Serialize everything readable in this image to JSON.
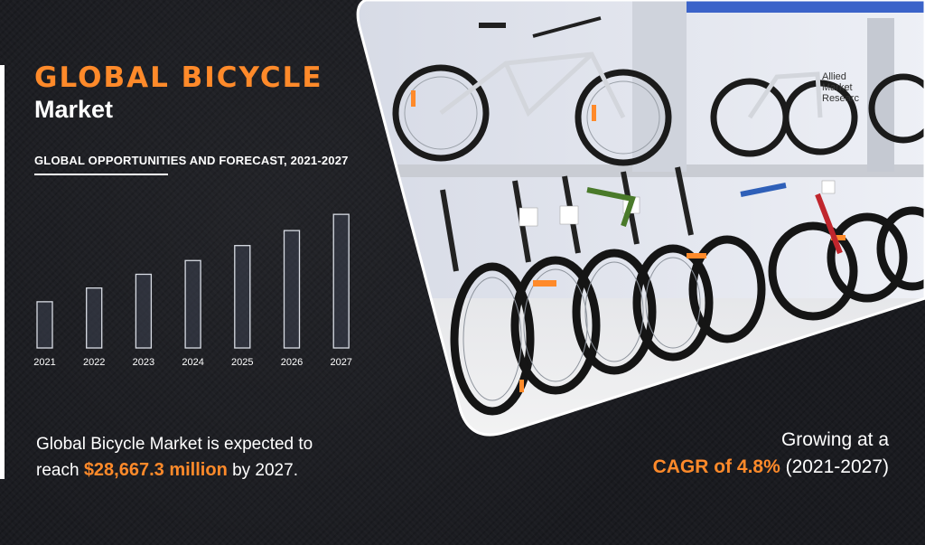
{
  "header": {
    "title": "GLOBAL BICYCLE",
    "title_line2": "Market",
    "subtitle": "GLOBAL OPPORTUNITIES AND FORECAST, 2021-2027"
  },
  "chart_data": {
    "type": "bar",
    "categories": [
      "2021",
      "2022",
      "2023",
      "2024",
      "2025",
      "2026",
      "2027"
    ],
    "values": [
      21.7,
      22.8,
      23.9,
      25.0,
      26.2,
      27.4,
      28.7
    ],
    "ylim": [
      18,
      29
    ],
    "grid": false,
    "title": "",
    "xlabel": "",
    "ylabel": ""
  },
  "summary": {
    "line1": "Global Bicycle Market is expected to",
    "prefix": "reach ",
    "value": "$28,667.3 million",
    "suffix": " by 2027."
  },
  "growth": {
    "line1": "Growing at a",
    "cagr": "CAGR of 4.8%",
    "period": " (2021-2027)"
  },
  "photo": {
    "watermark_line1": "Allied",
    "watermark_line2": "Market",
    "watermark_line3": "Researc"
  },
  "colors": {
    "accent": "#ff8a2a",
    "background": "#1a1b20",
    "text": "#ffffff"
  }
}
